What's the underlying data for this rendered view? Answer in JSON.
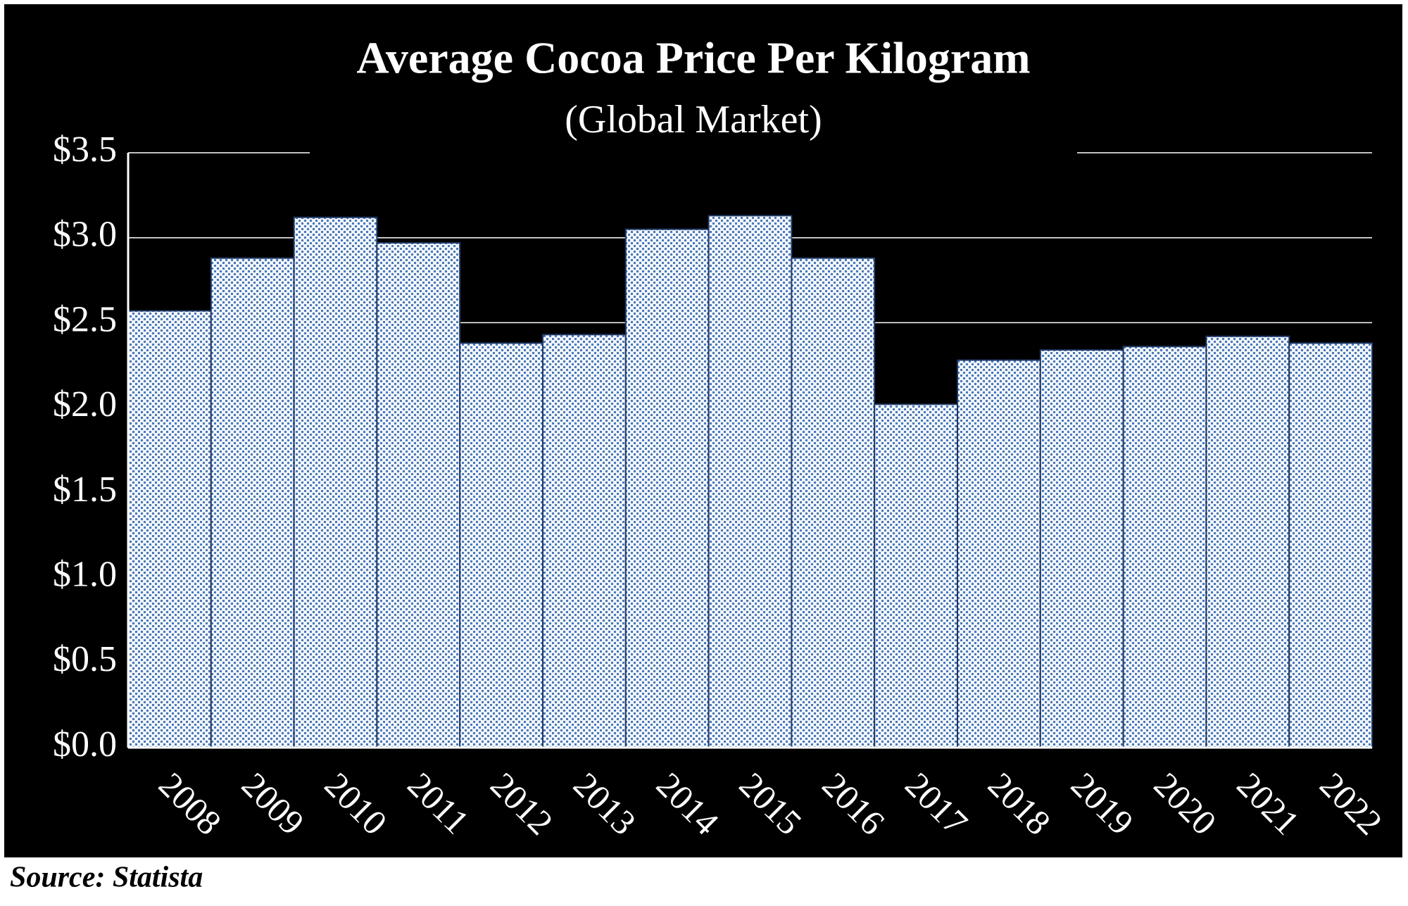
{
  "chart_data": {
    "type": "bar",
    "title": "Average Cocoa Price Per Kilogram",
    "subtitle": "(Global Market)",
    "source": "Source: Statista",
    "categories": [
      "2008",
      "2009",
      "2010",
      "2011",
      "2012",
      "2013",
      "2014",
      "2015",
      "2016",
      "2017",
      "2018",
      "2019",
      "2020",
      "2021",
      "2022"
    ],
    "values": [
      2.57,
      2.88,
      3.12,
      2.97,
      2.38,
      2.43,
      3.05,
      3.13,
      2.88,
      2.02,
      2.28,
      2.34,
      2.36,
      2.42,
      2.38
    ],
    "color": "#4a78b8",
    "ylim": [
      0,
      3.5
    ],
    "yticks": [
      {
        "value": 0,
        "label": "$0.0"
      },
      {
        "value": 0.5,
        "label": "$0.5"
      },
      {
        "value": 1,
        "label": "$1.0"
      },
      {
        "value": 1.5,
        "label": "$1.5"
      },
      {
        "value": 2,
        "label": "$2.0"
      },
      {
        "value": 2.5,
        "label": "$2.5"
      },
      {
        "value": 3,
        "label": "$3.0"
      },
      {
        "value": 3.5,
        "label": "$3.5"
      }
    ],
    "grid": true
  }
}
